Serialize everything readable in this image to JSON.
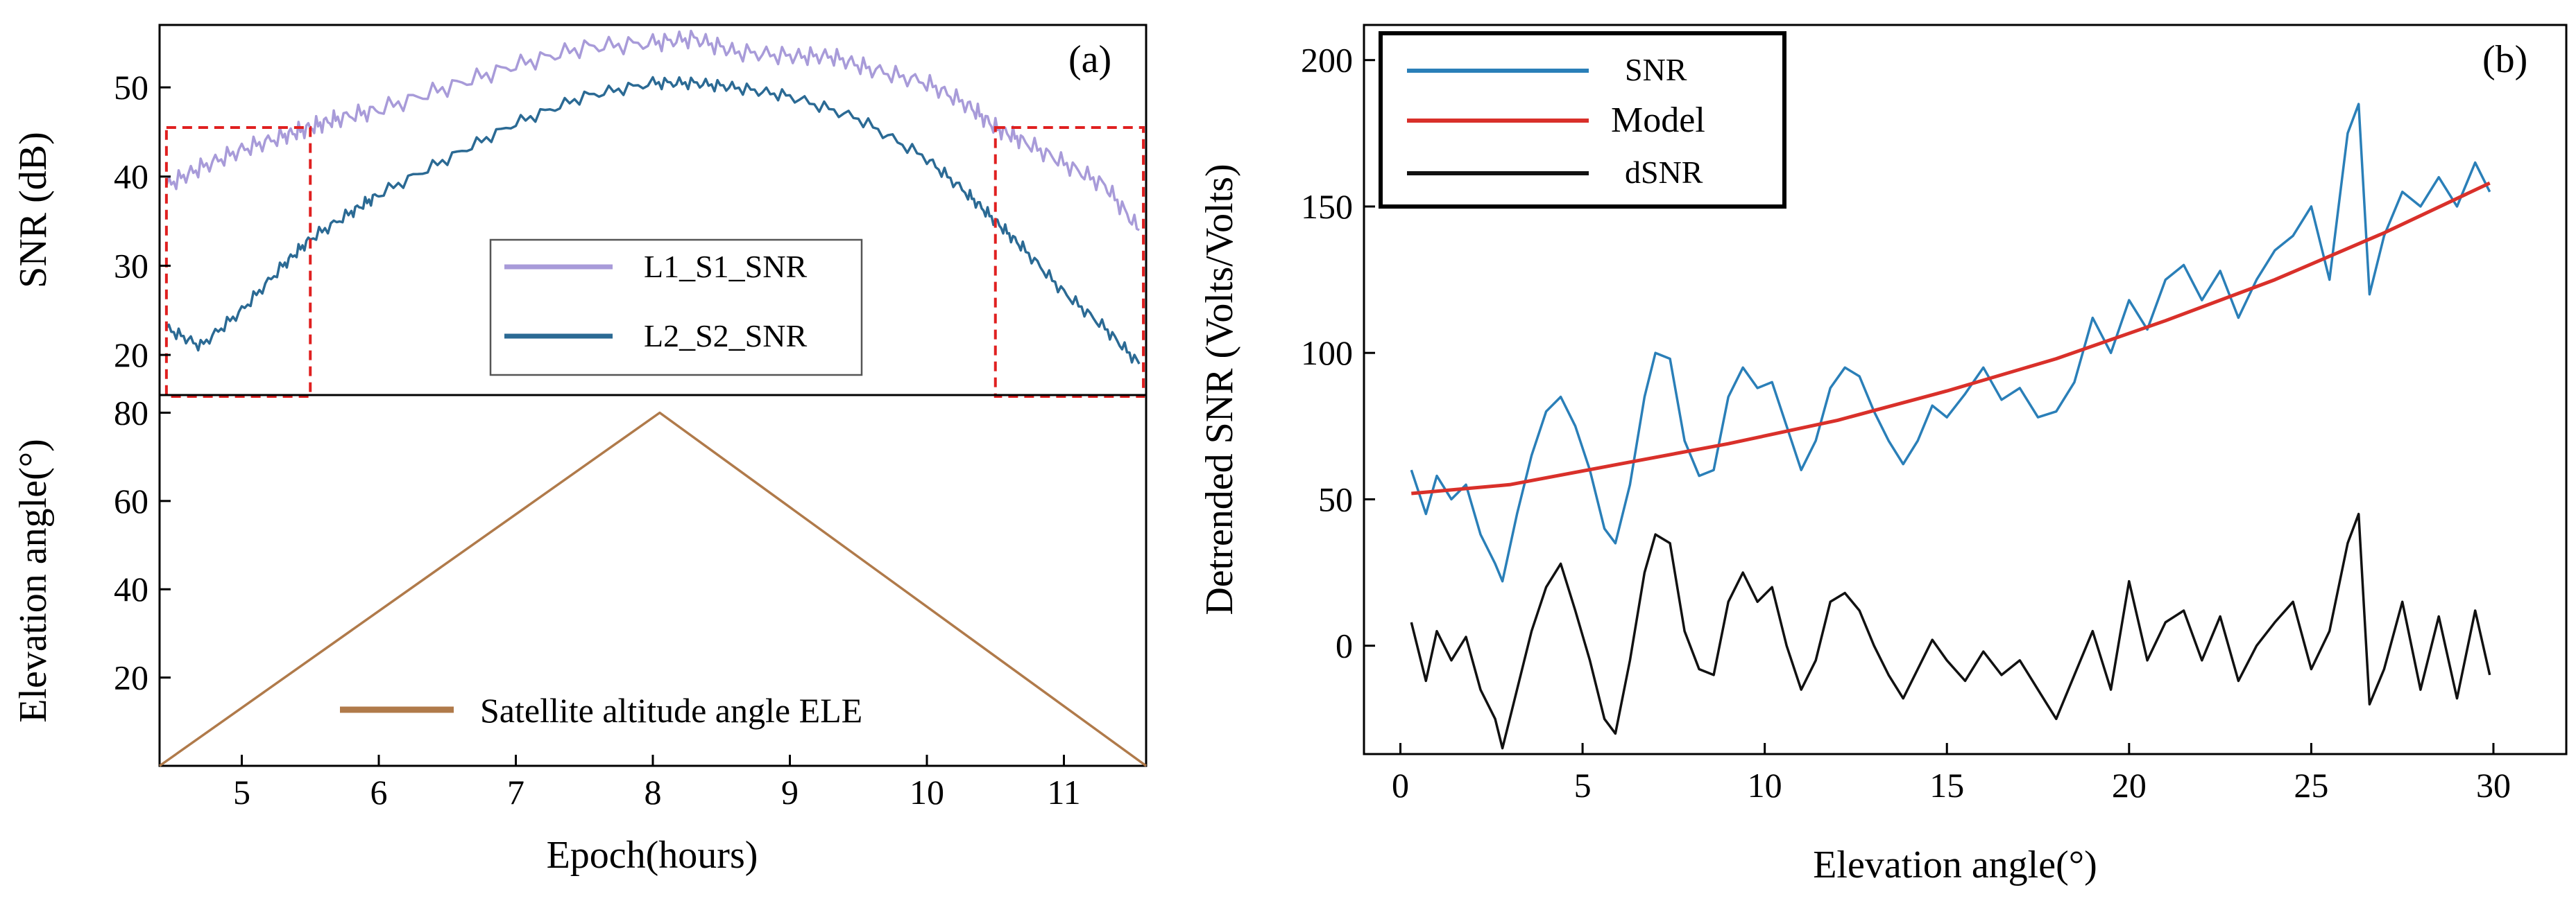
{
  "chart_data": [
    {
      "panel": "a-top",
      "type": "line",
      "panel_label": "(a)",
      "ylabel": "SNR (dB)",
      "xlim": [
        4.4,
        11.6
      ],
      "ylim": [
        15.5,
        57
      ],
      "yticks": [
        20,
        30,
        40,
        50
      ],
      "series": [
        {
          "name": "L1_S1_SNR",
          "color": "#a89bd9",
          "x": [
            4.45,
            4.7,
            5.0,
            5.3,
            5.5,
            5.7,
            6.0,
            6.5,
            7.0,
            7.5,
            8.0,
            8.3,
            8.6,
            9.0,
            9.3,
            9.6,
            10.0,
            10.3,
            10.5,
            10.7,
            11.0,
            11.3,
            11.55
          ],
          "y": [
            39,
            41,
            43,
            44.5,
            45.5,
            46.5,
            47.5,
            50,
            52.5,
            54.5,
            55,
            55.5,
            54,
            53.5,
            53.5,
            52,
            50.5,
            48,
            45.5,
            44,
            41.5,
            39,
            34
          ]
        },
        {
          "name": "L2_S2_SNR",
          "color": "#2b6a94",
          "x": [
            4.45,
            4.7,
            5.0,
            5.3,
            5.5,
            5.8,
            6.0,
            6.5,
            7.0,
            7.5,
            8.0,
            8.3,
            8.6,
            9.0,
            9.5,
            10.0,
            10.3,
            10.5,
            10.7,
            11.0,
            11.3,
            11.55
          ],
          "y": [
            23,
            21,
            25,
            30,
            33,
            36,
            38,
            42,
            46,
            49,
            50.5,
            50.5,
            50,
            49,
            46.5,
            42,
            38,
            35,
            32,
            27,
            23,
            19
          ]
        }
      ],
      "highlight_boxes_x": [
        [
          4.45,
          5.5
        ],
        [
          10.5,
          11.58
        ]
      ],
      "annotations": []
    },
    {
      "panel": "a-bottom",
      "type": "line",
      "xlabel": "Epoch(hours)",
      "ylabel": "Elevation angle(°)",
      "xlim": [
        4.4,
        11.6
      ],
      "ylim": [
        0,
        84
      ],
      "xticks": [
        5,
        6,
        7,
        8,
        9,
        10,
        11
      ],
      "yticks": [
        20,
        40,
        60,
        80
      ],
      "series": [
        {
          "name": "Satellite altitude angle ELE",
          "color": "#b07a4a",
          "x": [
            4.4,
            8.05,
            11.6
          ],
          "y": [
            0,
            80,
            0
          ]
        }
      ]
    },
    {
      "panel": "b",
      "type": "line",
      "panel_label": "(b)",
      "xlabel": "Elevation angle(°)",
      "ylabel": "Detrended SNR (Volts/Volts)",
      "xlim": [
        -1,
        32
      ],
      "ylim": [
        -37,
        212
      ],
      "xticks": [
        0,
        5,
        10,
        15,
        20,
        25,
        30
      ],
      "yticks": [
        0,
        50,
        100,
        150,
        200
      ],
      "series": [
        {
          "name": "SNR",
          "color": "#2a7fb8",
          "x": [
            0.3,
            0.7,
            1.0,
            1.4,
            1.8,
            2.2,
            2.6,
            2.8,
            3.2,
            3.6,
            4.0,
            4.4,
            4.8,
            5.2,
            5.6,
            5.9,
            6.3,
            6.7,
            7.0,
            7.4,
            7.8,
            8.2,
            8.6,
            9.0,
            9.4,
            9.8,
            10.2,
            10.6,
            11.0,
            11.4,
            11.8,
            12.2,
            12.6,
            13.0,
            13.4,
            13.8,
            14.2,
            14.6,
            15.0,
            15.5,
            16.0,
            16.5,
            17.0,
            17.5,
            18.0,
            18.5,
            19.0,
            19.5,
            20.0,
            20.5,
            21.0,
            21.5,
            22.0,
            22.5,
            23.0,
            23.5,
            24.0,
            24.5,
            25.0,
            25.5,
            26.0,
            26.3,
            26.6,
            27.0,
            27.5,
            28.0,
            28.5,
            29.0,
            29.5,
            29.9
          ],
          "y": [
            60,
            45,
            58,
            50,
            55,
            38,
            28,
            22,
            45,
            65,
            80,
            85,
            75,
            60,
            40,
            35,
            55,
            85,
            100,
            98,
            70,
            58,
            60,
            85,
            95,
            88,
            90,
            75,
            60,
            70,
            88,
            95,
            92,
            80,
            70,
            62,
            70,
            82,
            78,
            86,
            95,
            84,
            88,
            78,
            80,
            90,
            112,
            100,
            118,
            108,
            125,
            130,
            118,
            128,
            112,
            125,
            135,
            140,
            150,
            125,
            175,
            185,
            120,
            140,
            155,
            150,
            160,
            150,
            165,
            155
          ]
        },
        {
          "name": "Model",
          "color": "#d9302a",
          "x": [
            0.3,
            3,
            6,
            9,
            12,
            15,
            18,
            21,
            24,
            27,
            29.9
          ],
          "y": [
            52,
            55,
            62,
            69,
            77,
            87,
            98,
            111,
            125,
            141,
            158
          ]
        },
        {
          "name": "dSNR",
          "color": "#111111",
          "x": [
            0.3,
            0.7,
            1.0,
            1.4,
            1.8,
            2.2,
            2.6,
            2.8,
            3.2,
            3.6,
            4.0,
            4.4,
            4.8,
            5.2,
            5.6,
            5.9,
            6.3,
            6.7,
            7.0,
            7.4,
            7.8,
            8.2,
            8.6,
            9.0,
            9.4,
            9.8,
            10.2,
            10.6,
            11.0,
            11.4,
            11.8,
            12.2,
            12.6,
            13.0,
            13.4,
            13.8,
            14.2,
            14.6,
            15.0,
            15.5,
            16.0,
            16.5,
            17.0,
            17.5,
            18.0,
            18.5,
            19.0,
            19.5,
            20.0,
            20.5,
            21.0,
            21.5,
            22.0,
            22.5,
            23.0,
            23.5,
            24.0,
            24.5,
            25.0,
            25.5,
            26.0,
            26.3,
            26.6,
            27.0,
            27.5,
            28.0,
            28.5,
            29.0,
            29.5,
            29.9
          ],
          "y": [
            8,
            -12,
            5,
            -5,
            3,
            -15,
            -25,
            -35,
            -15,
            5,
            20,
            28,
            12,
            -5,
            -25,
            -30,
            -5,
            25,
            38,
            35,
            5,
            -8,
            -10,
            15,
            25,
            15,
            20,
            0,
            -15,
            -5,
            15,
            18,
            12,
            0,
            -10,
            -18,
            -8,
            2,
            -5,
            -12,
            -2,
            -10,
            -5,
            -15,
            -25,
            -10,
            5,
            -15,
            22,
            -5,
            8,
            12,
            -5,
            10,
            -12,
            0,
            8,
            15,
            -8,
            5,
            35,
            45,
            -20,
            -8,
            15,
            -15,
            10,
            -18,
            12,
            -10
          ]
        }
      ]
    }
  ]
}
